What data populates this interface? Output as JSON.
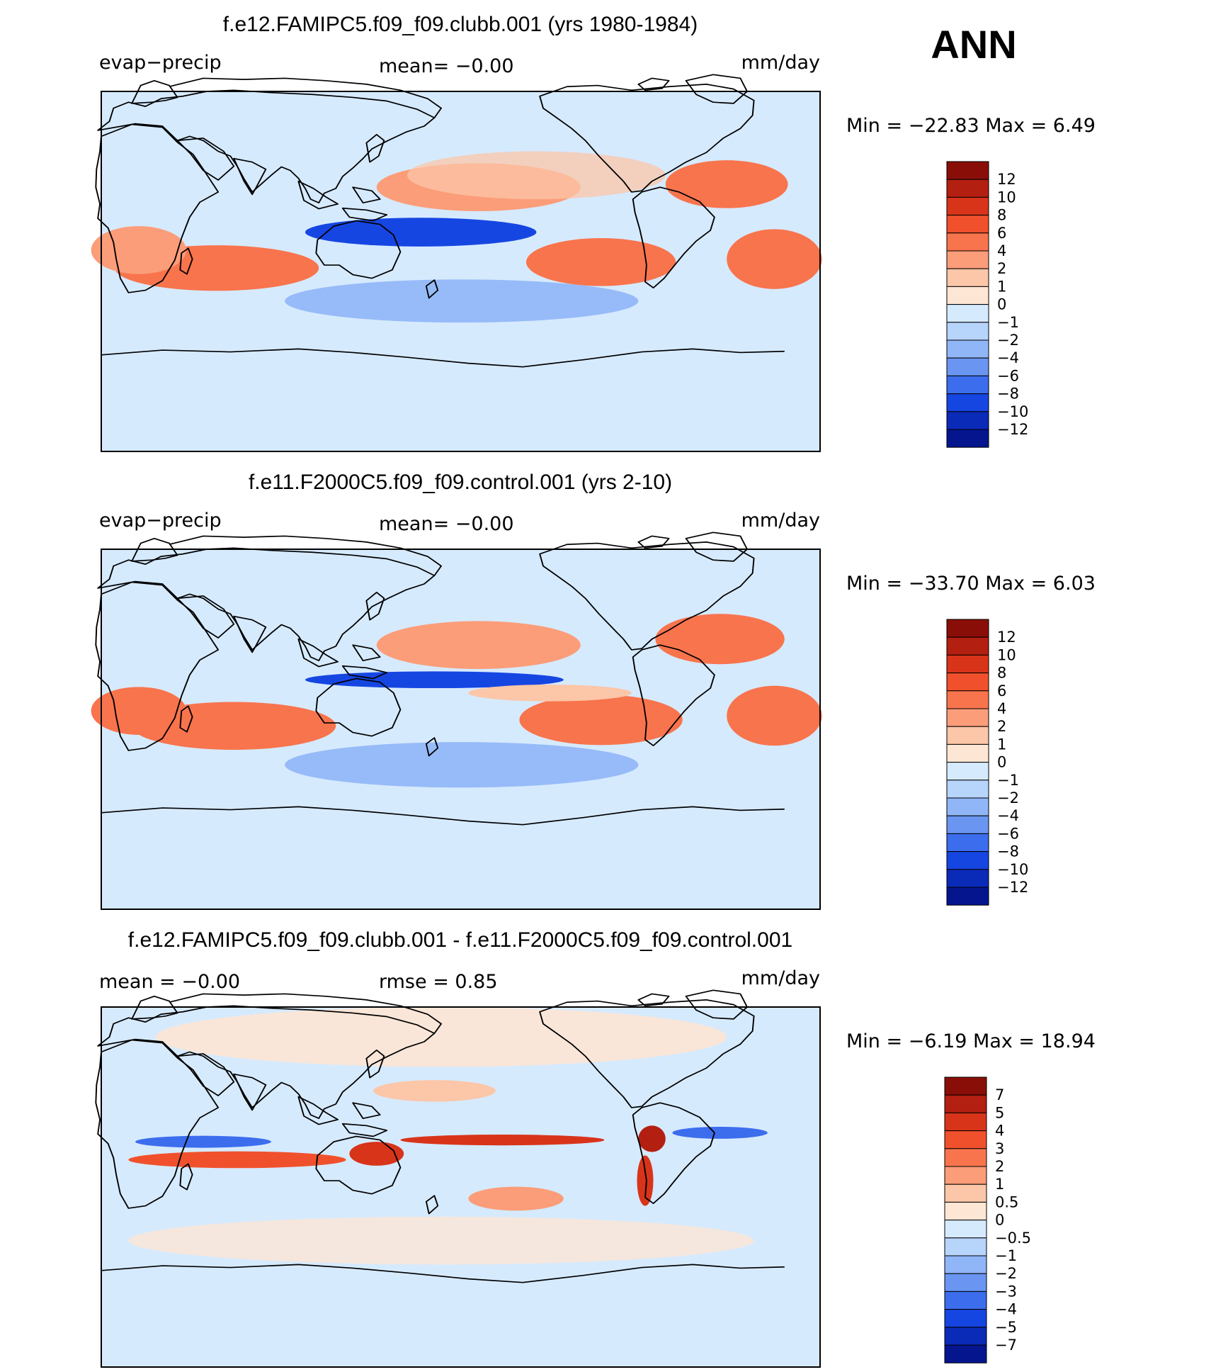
{
  "season": "ANN",
  "colors": {
    "pos": [
      "#fde6d4",
      "#fcc6a8",
      "#fb9d79",
      "#f8744d",
      "#f0512c",
      "#d8341a",
      "#b31f10",
      "#8a0e08"
    ],
    "neg": [
      "#d6eafe",
      "#b7d4fb",
      "#90b6f7",
      "#6a96f2",
      "#3c6ded",
      "#1646e2",
      "#0a2ab8",
      "#04158e"
    ],
    "land_outline": "#000000"
  },
  "panels": [
    {
      "id": "case",
      "title": "f.e12.FAMIPC5.f09_f09.clubb.001 (yrs 1980-1984)",
      "left_label": "evap−precip",
      "center_label": "mean=   −0.00",
      "units": "mm/day",
      "minmax": "Min  =  −22.83  Max  =     6.49",
      "colorbar": {
        "levels": [
          "12",
          "10",
          "8",
          "6",
          "4",
          "2",
          "1",
          "0",
          "−1",
          "−2",
          "−4",
          "−6",
          "−8",
          "−10",
          "−12"
        ]
      }
    },
    {
      "id": "control",
      "title": "f.e11.F2000C5.f09_f09.control.001 (yrs 2-10)",
      "left_label": "evap−precip",
      "center_label": "mean=   −0.00",
      "units": "mm/day",
      "minmax": "Min  =  −33.70  Max  =     6.03",
      "colorbar": {
        "levels": [
          "12",
          "10",
          "8",
          "6",
          "4",
          "2",
          "1",
          "0",
          "−1",
          "−2",
          "−4",
          "−6",
          "−8",
          "−10",
          "−12"
        ]
      }
    },
    {
      "id": "diff",
      "title": "f.e12.FAMIPC5.f09_f09.clubb.001 - f.e11.F2000C5.f09_f09.control.001",
      "left_label": "mean  =   −0.00",
      "center_label": "rmse  =     0.85",
      "units": "mm/day",
      "minmax": "Min  =    −6.19  Max  =    18.94",
      "colorbar": {
        "levels": [
          "7",
          "5",
          "4",
          "3",
          "2",
          "1",
          "0.5",
          "0",
          "−0.5",
          "−1",
          "−2",
          "−3",
          "−4",
          "−5",
          "−7"
        ]
      }
    }
  ]
}
